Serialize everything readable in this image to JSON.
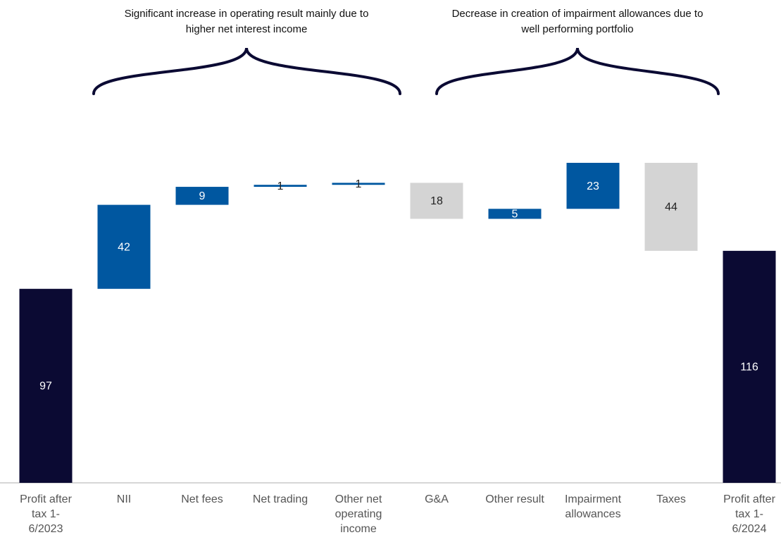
{
  "chart_data": {
    "type": "waterfall",
    "categories": [
      "Profit after tax 1-6/2023",
      "NII",
      "Net fees",
      "Net trading",
      "Other net operating income",
      "G&A",
      "Other result",
      "Impairment allowances",
      "Taxes",
      "Profit after tax 1-6/2024"
    ],
    "values": [
      97,
      42,
      9,
      1,
      1,
      -18,
      5,
      23,
      -44,
      116
    ],
    "value_labels": [
      "97",
      "42",
      "9",
      "1",
      "1",
      "18",
      "5",
      "23",
      "44",
      "116"
    ],
    "kinds": [
      "total",
      "delta",
      "delta",
      "delta",
      "delta",
      "delta",
      "delta",
      "delta",
      "delta",
      "total"
    ],
    "colors": {
      "total": "#0b0a33",
      "increase": "#0057a0",
      "decrease": "#d4d4d4"
    },
    "annotations": [
      "Significant increase in operating result mainly due to higher net interest income",
      "Decrease in creation of impairment allowances due to well performing portfolio"
    ]
  }
}
